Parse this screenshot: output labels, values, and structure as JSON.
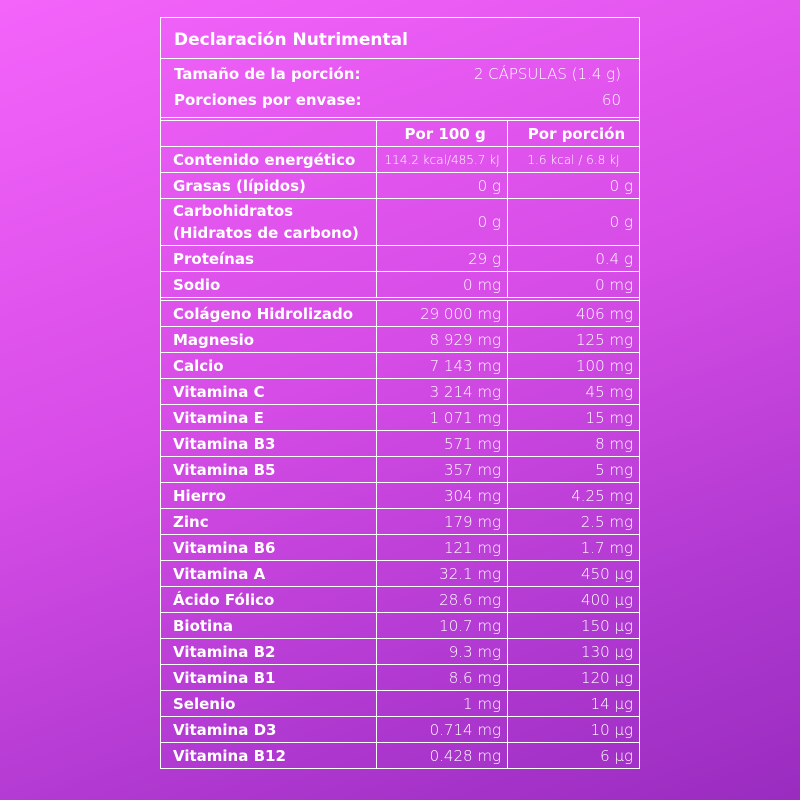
{
  "header": {
    "title": "Declaración Nutrimental",
    "serving_label": "Tamaño de la porción:",
    "serving_value": "2 CÁPSULAS (1.4 g)",
    "servings_label": "Porciones por envase:",
    "servings_value": "60"
  },
  "table": {
    "columns": [
      "Por 100 g",
      "Por porción"
    ],
    "macro_rows": [
      [
        "Contenido energético",
        "114.2 kcal/485.7 kJ",
        "1.6 kcal / 6.8 kJ"
      ],
      [
        "Grasas (lípidos)",
        "0 g",
        "0 g"
      ],
      [
        "Carbohidratos\n(Hidratos de carbono)",
        "0 g",
        "0 g"
      ],
      [
        "Proteínas",
        "29 g",
        "0.4 g"
      ],
      [
        "Sodio",
        "0 mg",
        "0 mg"
      ]
    ],
    "micro_rows": [
      [
        "Colágeno Hidrolizado",
        "29 000 mg",
        "406 mg"
      ],
      [
        "Magnesio",
        "8 929 mg",
        "125 mg"
      ],
      [
        "Calcio",
        "7 143 mg",
        "100 mg"
      ],
      [
        "Vitamina C",
        "3 214 mg",
        "45 mg"
      ],
      [
        "Vitamina E",
        "1 071 mg",
        "15 mg"
      ],
      [
        "Vitamina B3",
        "571 mg",
        "8 mg"
      ],
      [
        "Vitamina B5",
        "357 mg",
        "5 mg"
      ],
      [
        "Hierro",
        "304 mg",
        "4.25 mg"
      ],
      [
        "Zinc",
        "179 mg",
        "2.5 mg"
      ],
      [
        "Vitamina B6",
        "121 mg",
        "1.7 mg"
      ],
      [
        "Vitamina A",
        "32.1 mg",
        "450 µg"
      ],
      [
        "Ácido Fólico",
        "28.6 mg",
        "400 µg"
      ],
      [
        "Biotina",
        "10.7 mg",
        "150 µg"
      ],
      [
        "Vitamina B2",
        "9.3 mg",
        "130 µg"
      ],
      [
        "Vitamina B1",
        "8.6 mg",
        "120 µg"
      ],
      [
        "Selenio",
        "1 mg",
        "14 µg"
      ],
      [
        "Vitamina D3",
        "0.714 mg",
        "10 µg"
      ],
      [
        "Vitamina B12",
        "0.428 mg",
        "6 µg"
      ]
    ]
  }
}
